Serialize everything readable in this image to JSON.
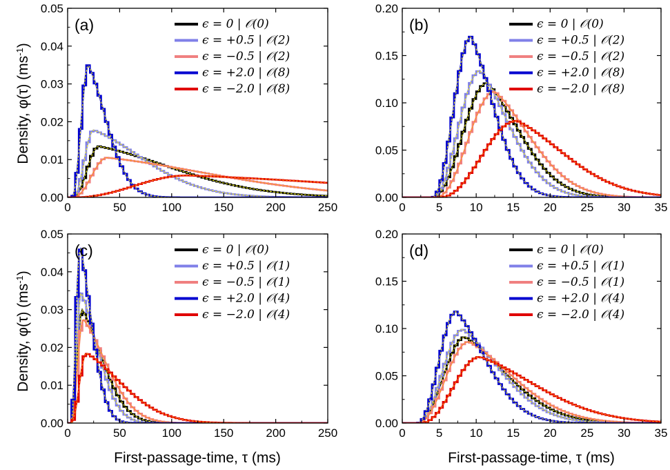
{
  "colors": {
    "eps_0": "#000000",
    "eps_p05": "#8080e8",
    "eps_m05": "#f08080",
    "eps_p2": "#0000d0",
    "eps_m2": "#e00000",
    "theory_overlay": "#ffff00",
    "theory_overlay_red": "#ffa000"
  },
  "figure": {
    "ylabel_main": "Density, ",
    "ylabel_phi": "φ(τ)",
    "ylabel_unit": " (ms",
    "ylabel_sup": "-1",
    "ylabel_close": ")",
    "xlabel": "First-passage-time, τ (ms)"
  },
  "chart_data": [
    {
      "panel": "(a)",
      "type": "line",
      "xlim": [
        0,
        250
      ],
      "ylim": [
        0,
        0.05
      ],
      "xticks": [
        0,
        50,
        100,
        150,
        200,
        250
      ],
      "xtick_labels": [
        "0",
        "50",
        "100",
        "150",
        "200",
        "250"
      ],
      "yticks": [
        0,
        0.01,
        0.02,
        0.03,
        0.04,
        0.05
      ],
      "ytick_labels": [
        "0.00",
        "0.01",
        "0.02",
        "0.03",
        "0.04",
        "0.05"
      ],
      "legend_position": "top-right",
      "series": [
        {
          "name": "ϵ = 0 | 𝒪(0)",
          "color_key": "eps_0",
          "start": 5,
          "peak_x": 30,
          "peak_y": 0.0135,
          "rise": 0.8,
          "tail": 90
        },
        {
          "name": "ϵ = +0.5 | 𝒪(2)",
          "color_key": "eps_p05",
          "start": 5,
          "peak_x": 25,
          "peak_y": 0.0178,
          "rise": 0.8,
          "tail": 60
        },
        {
          "name": "ϵ = −0.5 | 𝒪(2)",
          "color_key": "eps_m05",
          "start": 5,
          "peak_x": 38,
          "peak_y": 0.0105,
          "rise": 0.8,
          "tail": 130
        },
        {
          "name": "ϵ = +2.0 | 𝒪(8)",
          "color_key": "eps_p2",
          "start": 4,
          "peak_x": 20,
          "peak_y": 0.035,
          "rise": 0.8,
          "tail": 22
        },
        {
          "name": "ϵ = −2.0 | 𝒪(8)",
          "color_key": "eps_m2",
          "start": 5,
          "peak_x": 115,
          "peak_y": 0.0058,
          "rise": 0.8,
          "tail": 210
        }
      ]
    },
    {
      "panel": "(b)",
      "type": "line",
      "xlim": [
        0,
        35
      ],
      "ylim": [
        0,
        0.2
      ],
      "xticks": [
        0,
        5,
        10,
        15,
        20,
        25,
        30,
        35
      ],
      "xtick_labels": [
        "0",
        "5",
        "10",
        "15",
        "20",
        "25",
        "30",
        "35"
      ],
      "yticks": [
        0,
        0.05,
        0.1,
        0.15,
        0.2
      ],
      "ytick_labels": [
        "0.00",
        "0.05",
        "0.10",
        "0.15",
        "0.20"
      ],
      "legend_position": "top-right",
      "series": [
        {
          "name": "ϵ = 0 | 𝒪(0)",
          "color_key": "eps_0",
          "start": 4,
          "peak_x": 11.5,
          "peak_y": 0.121,
          "rise": 1.2,
          "tail": 5.5
        },
        {
          "name": "ϵ = +0.5 | 𝒪(2)",
          "color_key": "eps_p05",
          "start": 4,
          "peak_x": 10.5,
          "peak_y": 0.134,
          "rise": 1.2,
          "tail": 5
        },
        {
          "name": "ϵ = −0.5 | 𝒪(2)",
          "color_key": "eps_m05",
          "start": 4.5,
          "peak_x": 12.5,
          "peak_y": 0.112,
          "rise": 1.2,
          "tail": 6
        },
        {
          "name": "ϵ = +2.0 | 𝒪(8)",
          "color_key": "eps_p2",
          "start": 4,
          "peak_x": 9.3,
          "peak_y": 0.17,
          "rise": 1.2,
          "tail": 3.8
        },
        {
          "name": "ϵ = −2.0 | 𝒪(8)",
          "color_key": "eps_m2",
          "start": 5,
          "peak_x": 15.5,
          "peak_y": 0.081,
          "rise": 1.2,
          "tail": 8
        }
      ]
    },
    {
      "panel": "(c)",
      "type": "line",
      "xlim": [
        0,
        250
      ],
      "ylim": [
        0,
        0.05
      ],
      "xticks": [
        0,
        50,
        100,
        150,
        200,
        250
      ],
      "xtick_labels": [
        "0",
        "50",
        "100",
        "150",
        "200",
        "250"
      ],
      "yticks": [
        0,
        0.01,
        0.02,
        0.03,
        0.04,
        0.05
      ],
      "ytick_labels": [
        "0.00",
        "0.01",
        "0.02",
        "0.03",
        "0.04",
        "0.05"
      ],
      "legend_position": "top-right",
      "series": [
        {
          "name": "ϵ = 0 | 𝒪(0)",
          "color_key": "eps_0",
          "start": 3,
          "peak_x": 14,
          "peak_y": 0.03,
          "rise": 0.8,
          "tail": 24
        },
        {
          "name": "ϵ = +0.5 | 𝒪(1)",
          "color_key": "eps_p05",
          "start": 3,
          "peak_x": 13,
          "peak_y": 0.0345,
          "rise": 0.8,
          "tail": 20
        },
        {
          "name": "ϵ = −0.5 | 𝒪(1)",
          "color_key": "eps_m05",
          "start": 3,
          "peak_x": 15,
          "peak_y": 0.0275,
          "rise": 0.8,
          "tail": 28
        },
        {
          "name": "ϵ = +2.0 | 𝒪(4)",
          "color_key": "eps_p2",
          "start": 3,
          "peak_x": 12,
          "peak_y": 0.0465,
          "rise": 0.8,
          "tail": 14
        },
        {
          "name": "ϵ = −2.0 | 𝒪(4)",
          "color_key": "eps_m2",
          "start": 3,
          "peak_x": 18,
          "peak_y": 0.0185,
          "rise": 0.8,
          "tail": 42
        }
      ]
    },
    {
      "panel": "(d)",
      "type": "line",
      "xlim": [
        0,
        35
      ],
      "ylim": [
        0,
        0.2
      ],
      "xticks": [
        0,
        5,
        10,
        15,
        20,
        25,
        30,
        35
      ],
      "xtick_labels": [
        "0",
        "5",
        "10",
        "15",
        "20",
        "25",
        "30",
        "35"
      ],
      "yticks": [
        0,
        0.05,
        0.1,
        0.15,
        0.2
      ],
      "ytick_labels": [
        "0.00",
        "0.05",
        "0.10",
        "0.15",
        "0.20"
      ],
      "legend_position": "top-right",
      "series": [
        {
          "name": "ϵ = 0 | 𝒪(0)",
          "color_key": "eps_0",
          "start": 2,
          "peak_x": 8.5,
          "peak_y": 0.091,
          "rise": 1.1,
          "tail": 7
        },
        {
          "name": "ϵ = +0.5 | 𝒪(1)",
          "color_key": "eps_p05",
          "start": 2,
          "peak_x": 8.2,
          "peak_y": 0.099,
          "rise": 1.1,
          "tail": 6.3
        },
        {
          "name": "ϵ = −0.5 | 𝒪(1)",
          "color_key": "eps_m05",
          "start": 2,
          "peak_x": 9,
          "peak_y": 0.086,
          "rise": 1.1,
          "tail": 7.5
        },
        {
          "name": "ϵ = +2.0 | 𝒪(4)",
          "color_key": "eps_p2",
          "start": 2,
          "peak_x": 7.3,
          "peak_y": 0.118,
          "rise": 1.1,
          "tail": 5
        },
        {
          "name": "ϵ = −2.0 | 𝒪(4)",
          "color_key": "eps_m2",
          "start": 2.5,
          "peak_x": 10.5,
          "peak_y": 0.07,
          "rise": 1.1,
          "tail": 9.5
        }
      ]
    }
  ]
}
